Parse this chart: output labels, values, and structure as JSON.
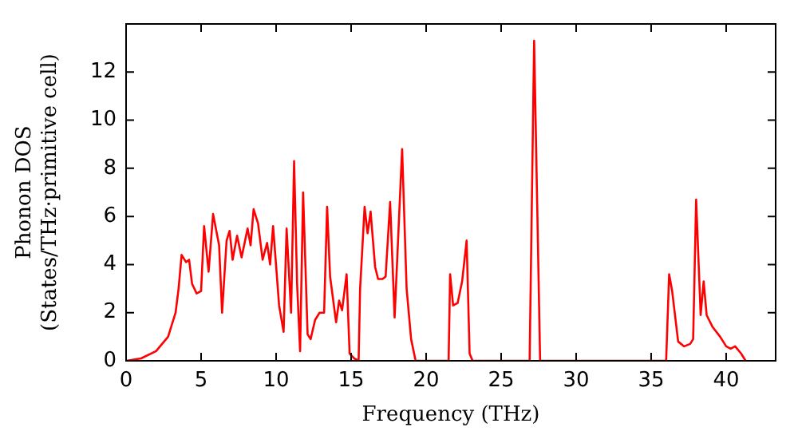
{
  "chart_data": {
    "type": "line",
    "xlabel": "Frequency (THz)",
    "ylabel": "Phonon DOS\n(States/THz·primitive cell)",
    "xlim": [
      0,
      43.3
    ],
    "ylim": [
      0,
      14
    ],
    "xticks": [
      0,
      5,
      10,
      15,
      20,
      25,
      30,
      35,
      40
    ],
    "yticks": [
      0,
      2,
      4,
      6,
      8,
      10,
      12
    ],
    "grid": false,
    "legend": false,
    "marker": "none",
    "line_style": "solid",
    "series": [
      {
        "color": "#ff0000",
        "x": [
          0,
          1,
          2,
          2.8,
          3.3,
          3.5,
          3.7,
          4,
          4.2,
          4.4,
          4.7,
          5,
          5.2,
          5.5,
          5.8,
          6.2,
          6.4,
          6.7,
          6.9,
          7.1,
          7.4,
          7.7,
          8.1,
          8.3,
          8.5,
          8.8,
          9.1,
          9.4,
          9.6,
          9.8,
          10.2,
          10.5,
          10.7,
          11,
          11.2,
          11.4,
          11.6,
          11.8,
          12.1,
          12.3,
          12.6,
          12.9,
          13.2,
          13.4,
          13.6,
          14,
          14.2,
          14.4,
          14.7,
          14.9,
          15.2,
          15.5,
          15.6,
          15.9,
          16.1,
          16.3,
          16.6,
          16.8,
          17.1,
          17.3,
          17.6,
          17.9,
          18.4,
          18.7,
          19,
          19.3,
          21.5,
          21.6,
          21.8,
          22.1,
          22.4,
          22.7,
          22.9,
          23.1,
          26.9,
          27.2,
          27.6,
          36,
          36.2,
          36.4,
          36.8,
          37.2,
          37.6,
          37.8,
          38,
          38.3,
          38.5,
          38.7,
          39.1,
          39.6,
          40,
          40.3,
          40.6,
          41,
          41.3
        ],
        "values": [
          0,
          0.1,
          0.4,
          1,
          2,
          3,
          4.4,
          4.1,
          4.2,
          3.2,
          2.8,
          2.9,
          5.6,
          3.7,
          6.1,
          4.8,
          2,
          5,
          5.4,
          4.2,
          5.2,
          4.3,
          5.5,
          4.8,
          6.3,
          5.7,
          4.2,
          4.9,
          4,
          5.6,
          2.3,
          1.2,
          5.5,
          2,
          8.3,
          3.2,
          0.4,
          7,
          1.1,
          0.9,
          1.7,
          2,
          2,
          6.4,
          3.5,
          1.6,
          2.5,
          2.1,
          3.6,
          0.3,
          0.1,
          0,
          3,
          6.4,
          5.3,
          6.2,
          3.9,
          3.4,
          3.4,
          3.5,
          6.6,
          1.8,
          8.8,
          3,
          0.9,
          0,
          0,
          3.6,
          2.3,
          2.4,
          3.3,
          5,
          0.3,
          0,
          0,
          13.3,
          0,
          0,
          3.6,
          2.9,
          0.8,
          0.6,
          0.7,
          0.9,
          6.7,
          1.9,
          3.3,
          1.9,
          1.4,
          1,
          0.6,
          0.5,
          0.6,
          0.3,
          0
        ]
      }
    ]
  }
}
